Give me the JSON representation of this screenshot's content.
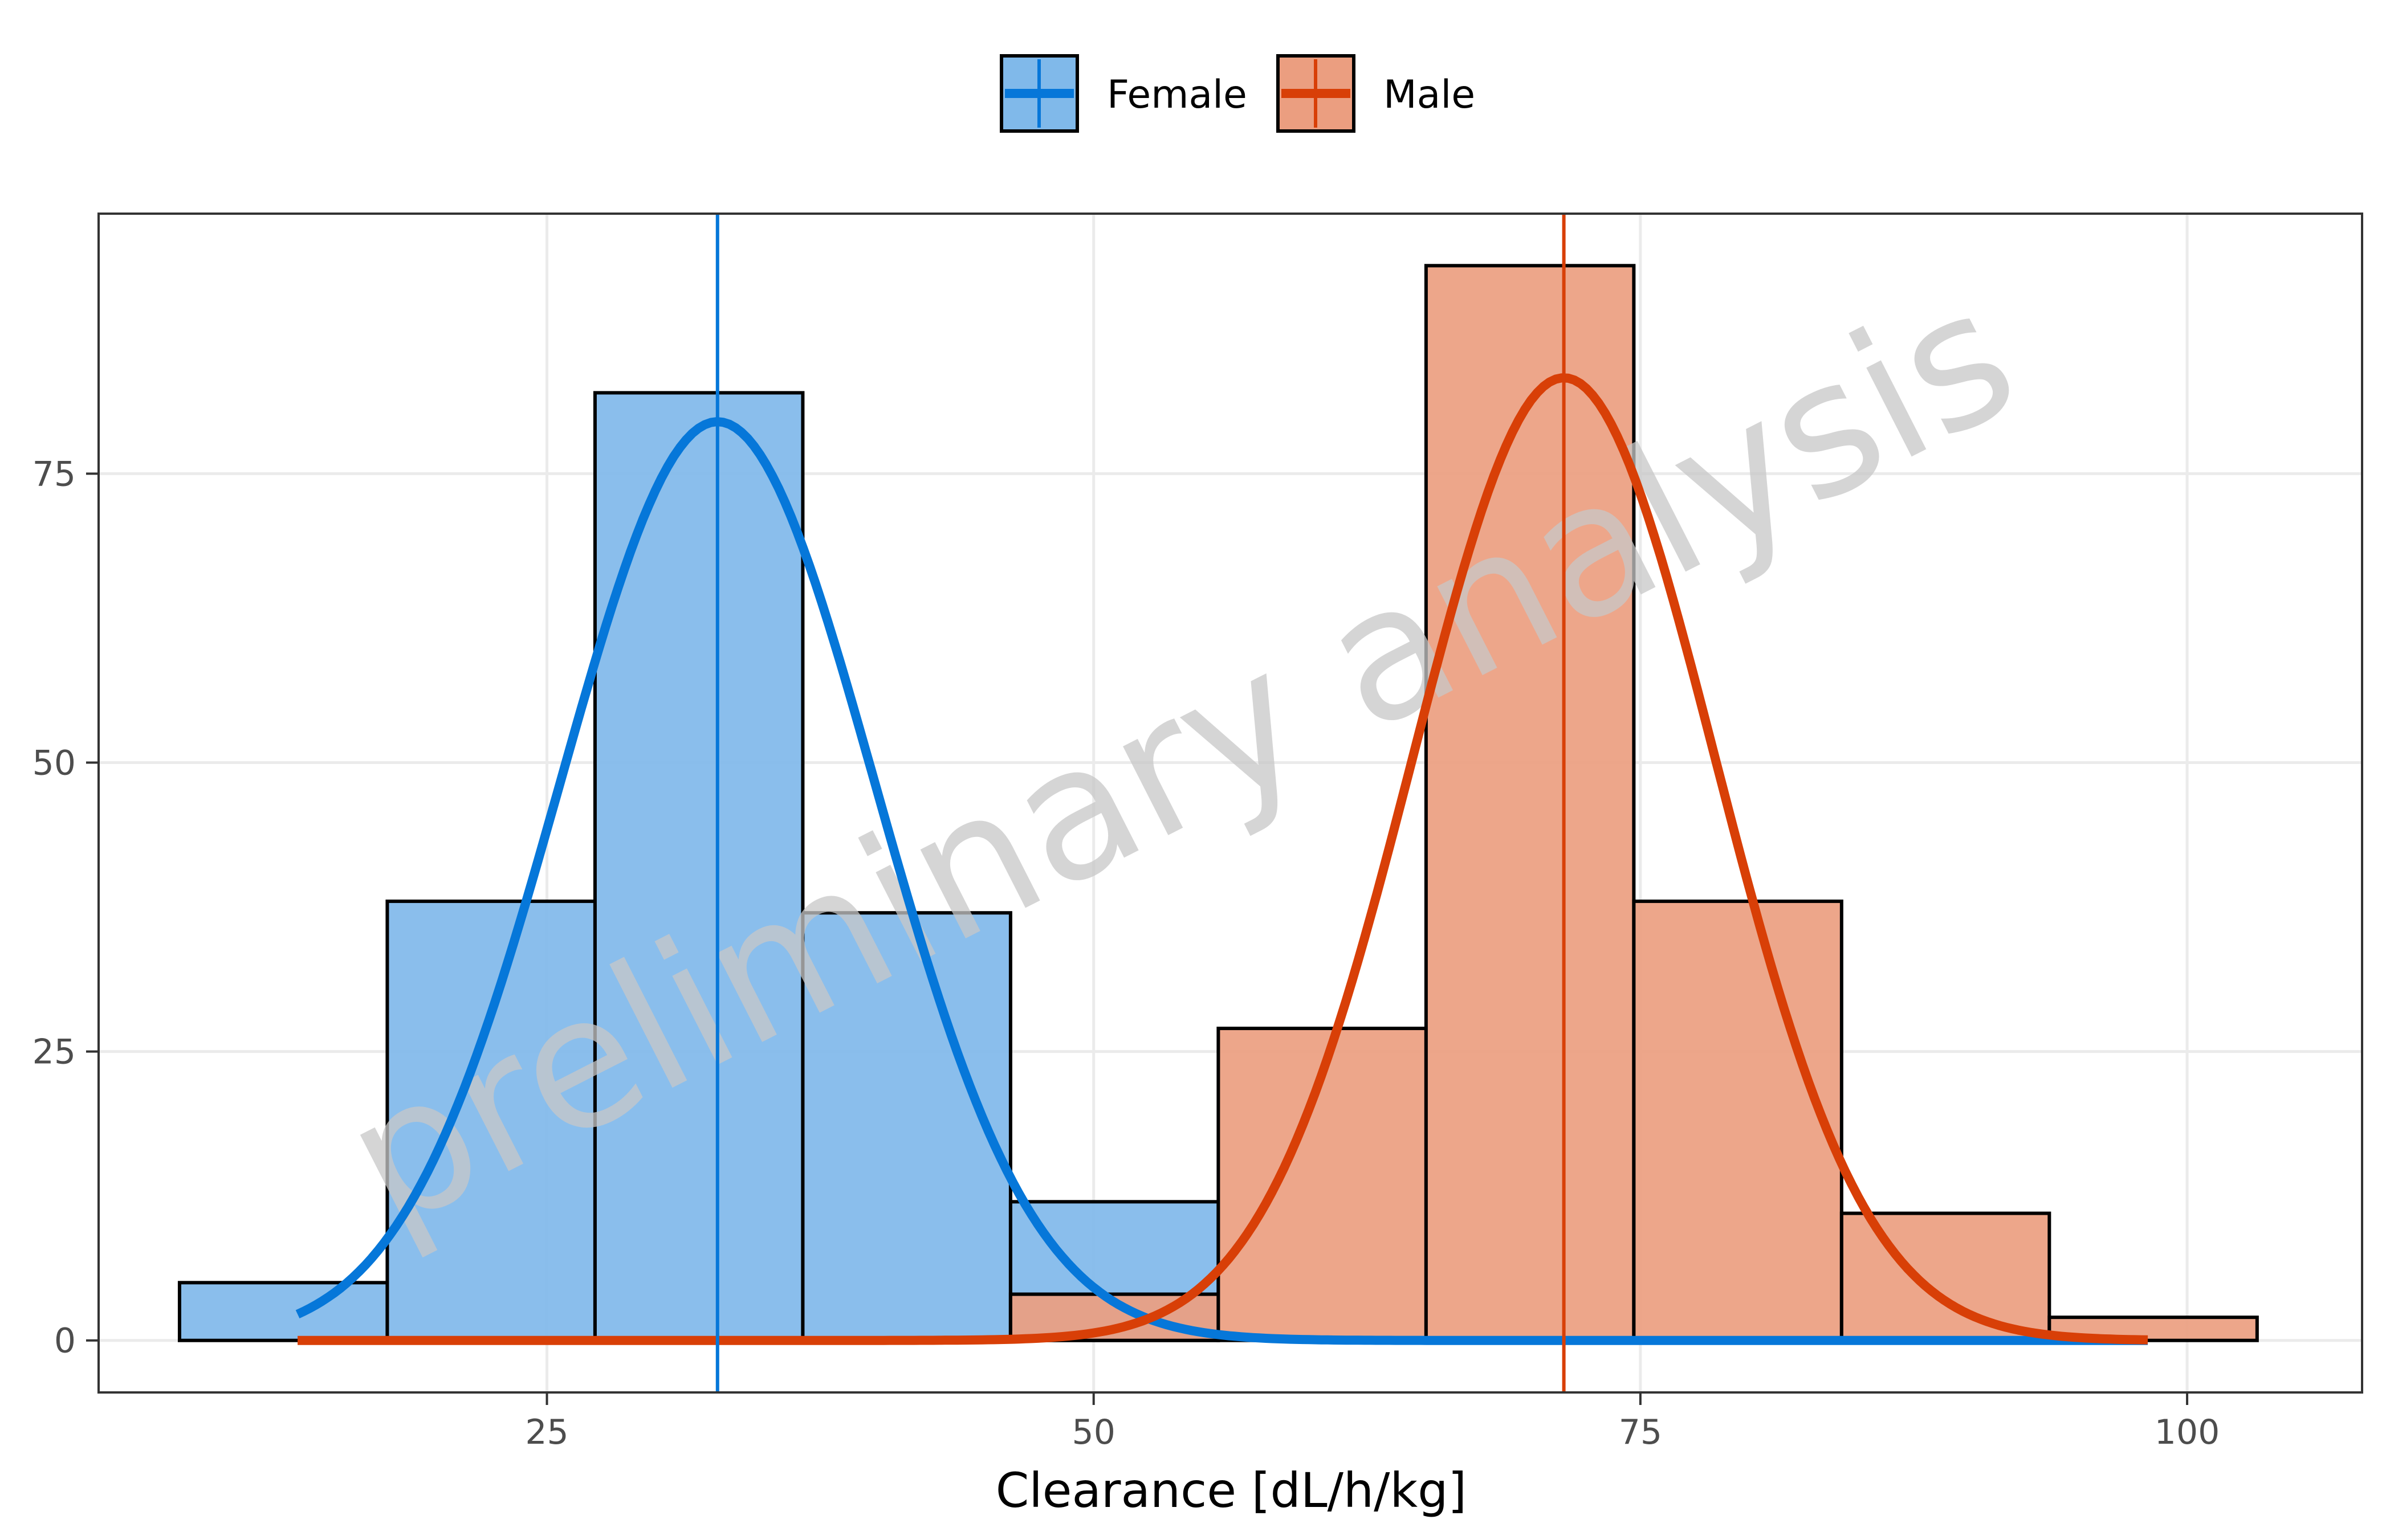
{
  "chart_data": {
    "type": "histogram",
    "title": "",
    "xlabel": "Clearance [dL/h/kg]",
    "ylabel": "",
    "xlim": [
      4.5,
      108
    ],
    "ylim": [
      -4.5,
      97.5
    ],
    "x_ticks": [
      25,
      50,
      75,
      100
    ],
    "y_ticks": [
      0,
      25,
      50,
      75
    ],
    "grid": true,
    "legend_position": "top",
    "watermark": "preliminary analysis",
    "bin_width": 9.5,
    "series": [
      {
        "name": "Female",
        "color": "#0677d9",
        "fill": "#80b9ea",
        "mean": 32.8,
        "density_peak": 79.5,
        "density_sd": 7.2,
        "density_range": [
          13.6,
          98.2
        ],
        "bins": [
          {
            "x0": 8.2,
            "x1": 17.7,
            "count": 5
          },
          {
            "x0": 17.7,
            "x1": 27.2,
            "count": 38
          },
          {
            "x0": 27.2,
            "x1": 36.7,
            "count": 82
          },
          {
            "x0": 36.7,
            "x1": 46.2,
            "count": 37
          },
          {
            "x0": 46.2,
            "x1": 55.7,
            "count": 12
          }
        ]
      },
      {
        "name": "Male",
        "color": "#d83f07",
        "fill": "#eb9e80",
        "mean": 71.5,
        "density_peak": 83.3,
        "density_sd": 6.9,
        "density_range": [
          13.6,
          98.2
        ],
        "bins": [
          {
            "x0": 46.2,
            "x1": 55.7,
            "count": 4
          },
          {
            "x0": 55.7,
            "x1": 65.2,
            "count": 27
          },
          {
            "x0": 65.2,
            "x1": 74.7,
            "count": 93
          },
          {
            "x0": 74.7,
            "x1": 84.2,
            "count": 38
          },
          {
            "x0": 84.2,
            "x1": 93.7,
            "count": 11
          },
          {
            "x0": 93.7,
            "x1": 103.2,
            "count": 2
          }
        ]
      }
    ]
  }
}
